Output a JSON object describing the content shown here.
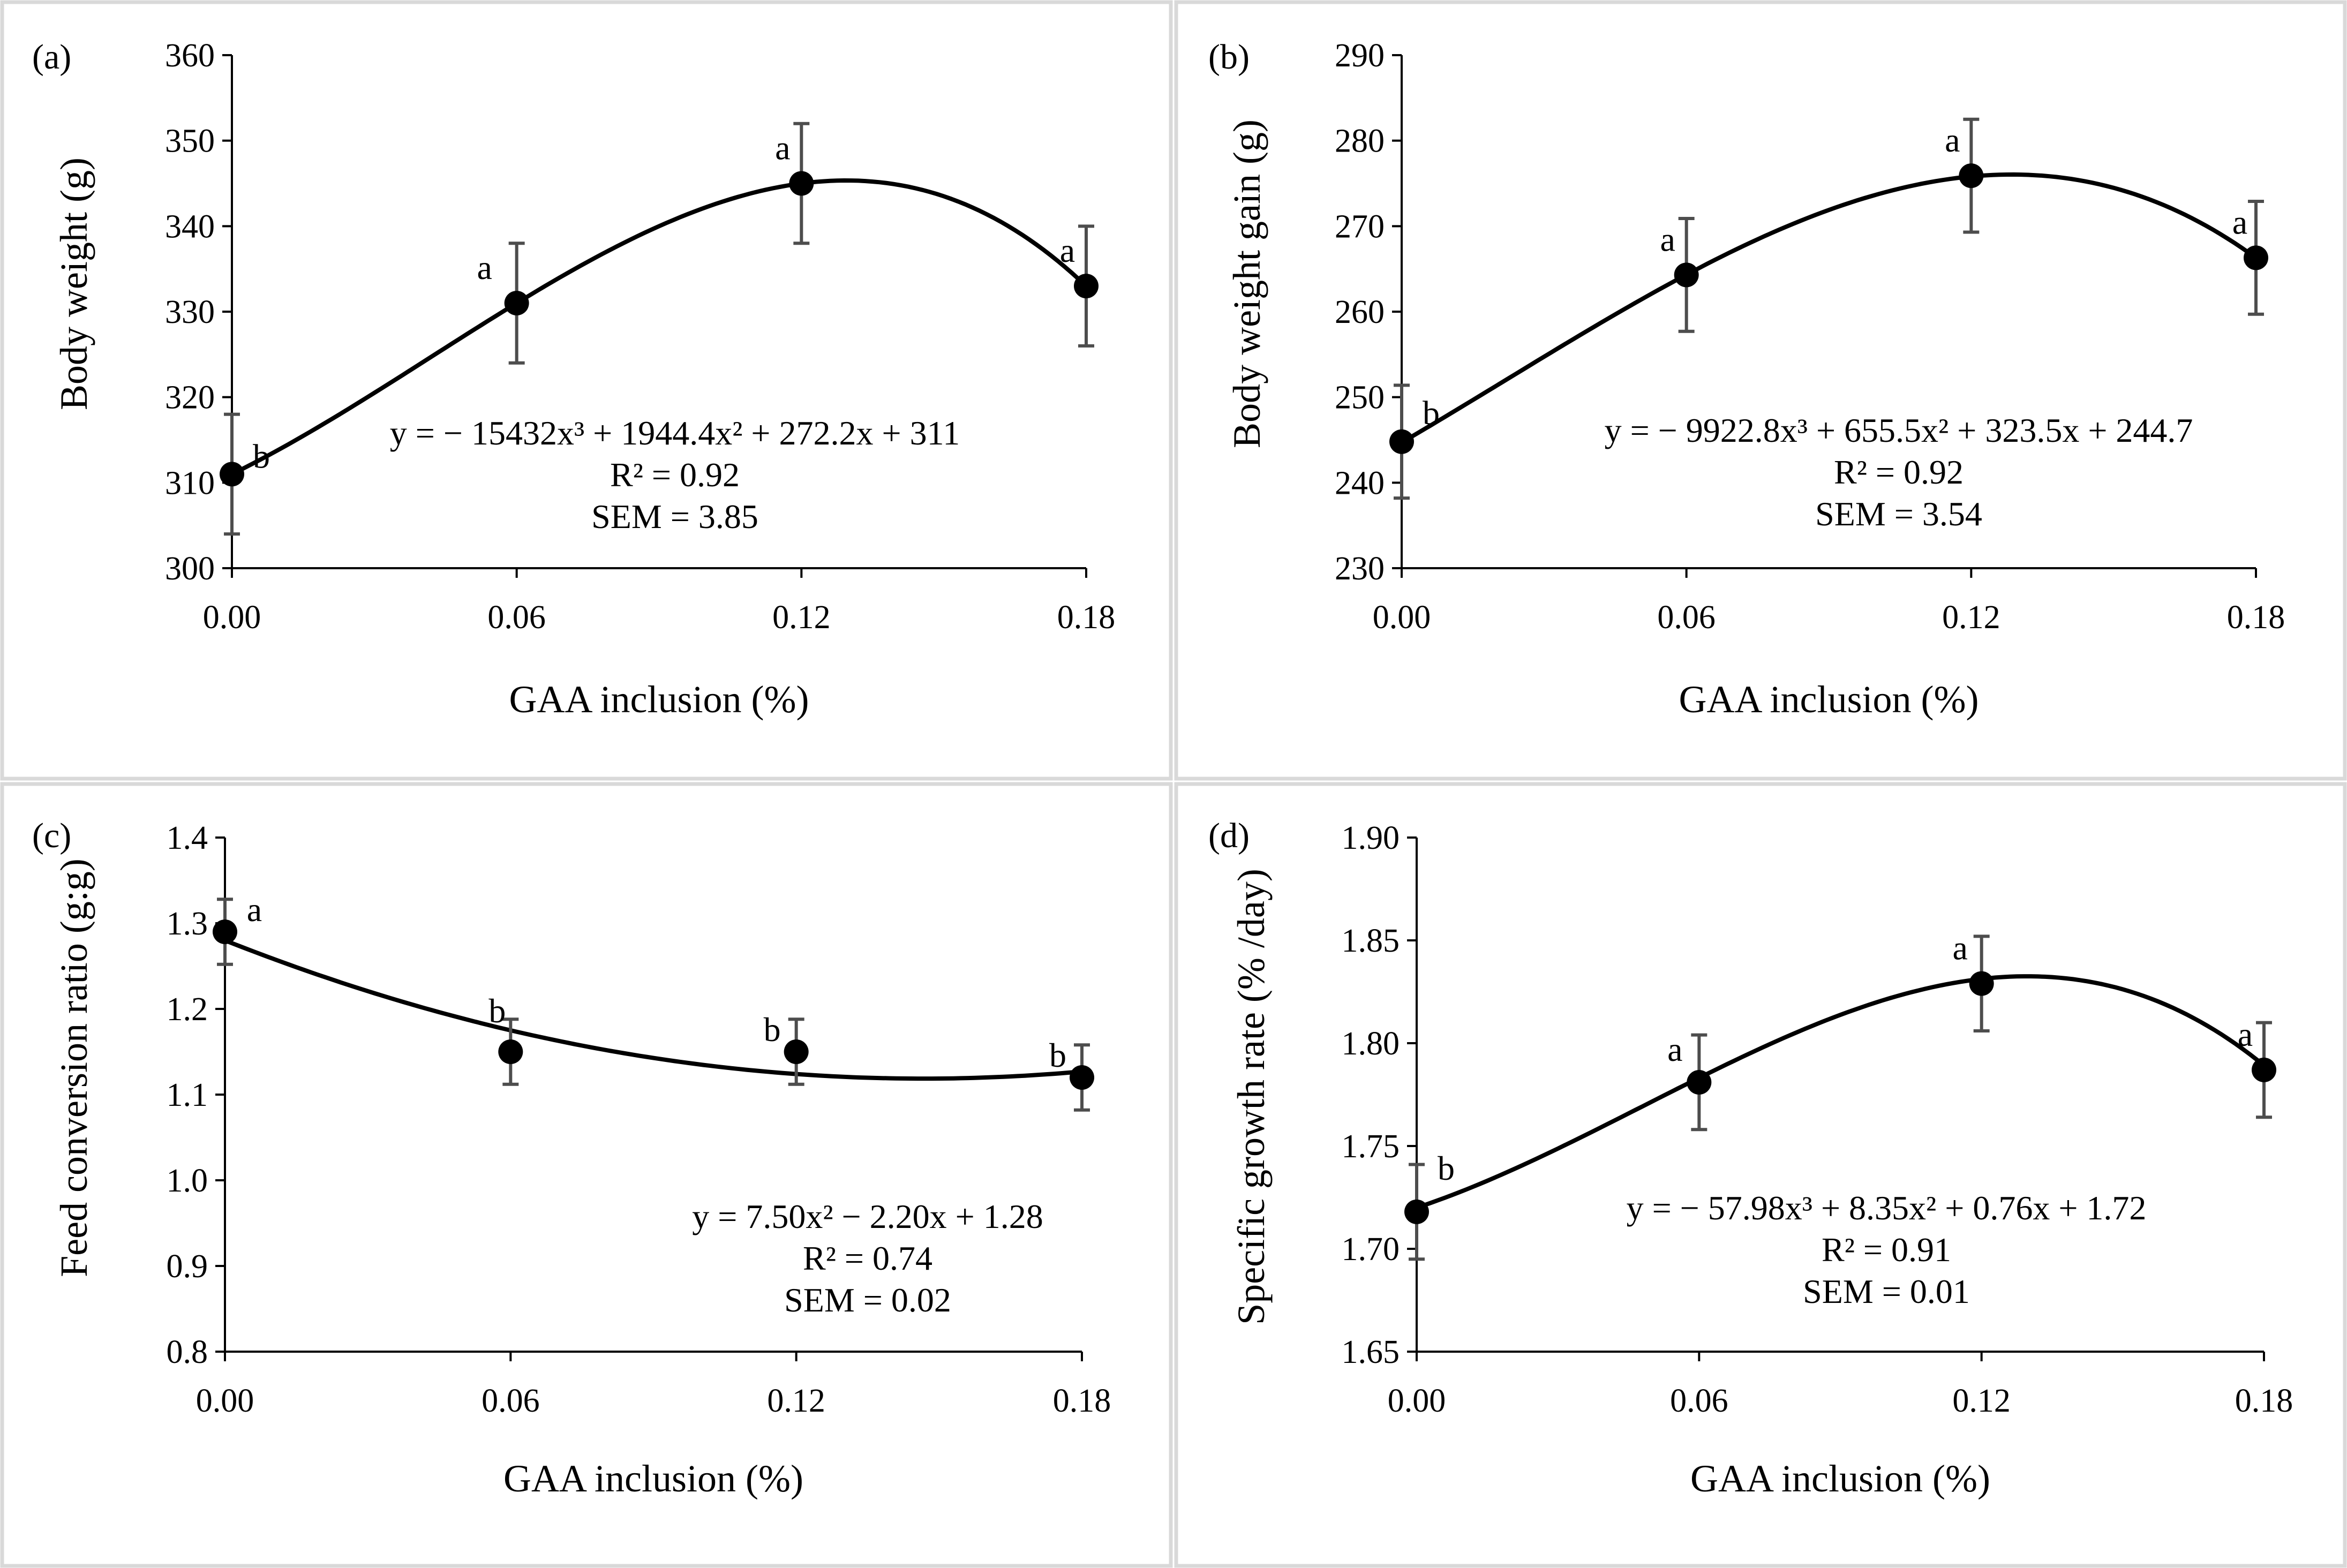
{
  "chart_data": [
    {
      "type": "scatter",
      "panel": "(a)",
      "x": [
        0.0,
        0.06,
        0.12,
        0.18
      ],
      "values": [
        311,
        331,
        345,
        333
      ],
      "error": [
        7,
        7,
        7,
        7
      ],
      "letters": [
        "b",
        "a",
        "a",
        "a"
      ],
      "fit_coefficients": [
        -15432,
        1944.4,
        272.2,
        311
      ],
      "xlim": [
        0,
        0.18
      ],
      "ylim": [
        300,
        360
      ],
      "xticks": [
        "0.00",
        "0.06",
        "0.12",
        "0.18"
      ],
      "yticks": [
        "300",
        "310",
        "320",
        "330",
        "340",
        "350",
        "360"
      ],
      "xlabel": "GAA inclusion (%)",
      "ylabel": "Body weight (g)",
      "annotation": {
        "equation": "y = − 15432x³ + 1944.4x² + 272.2x + 311",
        "r2": "R² = 0.92",
        "sem": "SEM = 3.85"
      }
    },
    {
      "type": "scatter",
      "panel": "(b)",
      "x": [
        0.0,
        0.06,
        0.12,
        0.18
      ],
      "values": [
        244.8,
        264.3,
        275.9,
        266.3
      ],
      "error": [
        6.6,
        6.6,
        6.6,
        6.6
      ],
      "letters": [
        "b",
        "a",
        "a",
        "a"
      ],
      "fit_coefficients": [
        -9922.8,
        655.5,
        323.5,
        244.7
      ],
      "xlim": [
        0,
        0.18
      ],
      "ylim": [
        230,
        290
      ],
      "xticks": [
        "0.00",
        "0.06",
        "0.12",
        "0.18"
      ],
      "yticks": [
        "230",
        "240",
        "250",
        "260",
        "270",
        "280",
        "290"
      ],
      "xlabel": "GAA inclusion (%)",
      "ylabel": "Body weight gain (g)",
      "annotation": {
        "equation": "y = − 9922.8x³  + 655.5x² + 323.5x + 244.7",
        "r2": "R² = 0.92",
        "sem": "SEM = 3.54"
      }
    },
    {
      "type": "scatter",
      "panel": "(c)",
      "x": [
        0.0,
        0.06,
        0.12,
        0.18
      ],
      "values": [
        1.29,
        1.15,
        1.15,
        1.12
      ],
      "error": [
        0.038,
        0.038,
        0.038,
        0.038
      ],
      "letters": [
        "a",
        "b",
        "b",
        "b"
      ],
      "fit_coefficients": [
        0,
        7.5,
        -2.2,
        1.28
      ],
      "xlim": [
        0,
        0.18
      ],
      "ylim": [
        0.8,
        1.4
      ],
      "xticks": [
        "0.00",
        "0.06",
        "0.12",
        "0.18"
      ],
      "yticks": [
        "0.8",
        "0.9",
        "1.0",
        "1.1",
        "1.2",
        "1.3",
        "1.4"
      ],
      "xlabel": "GAA inclusion (%)",
      "ylabel": "Feed conversion ratio  (g:g)",
      "annotation": {
        "equation": "y = 7.50x² −  2.20x + 1.28",
        "r2": "R² = 0.74",
        "sem": "SEM = 0.02"
      }
    },
    {
      "type": "scatter",
      "panel": "(d)",
      "x": [
        0.0,
        0.06,
        0.12,
        0.18
      ],
      "values": [
        1.718,
        1.781,
        1.829,
        1.787
      ],
      "error": [
        0.023,
        0.023,
        0.023,
        0.023
      ],
      "letters": [
        "b",
        "a",
        "a",
        "a"
      ],
      "fit_coefficients": [
        -57.98,
        8.35,
        0.76,
        1.72
      ],
      "xlim": [
        0,
        0.18
      ],
      "ylim": [
        1.65,
        1.9
      ],
      "xticks": [
        "0.00",
        "0.06",
        "0.12",
        "0.18"
      ],
      "yticks": [
        "1.65",
        "1.70",
        "1.75",
        "1.80",
        "1.85",
        "1.90"
      ],
      "xlabel": "GAA inclusion (%)",
      "ylabel": "Specific growth rate (% /day)",
      "annotation": {
        "equation": "y = − 57.98x³ + 8.35x² + 0.76x + 1.72",
        "r2": "R² = 0.91",
        "sem": "SEM = 0.01"
      }
    }
  ]
}
